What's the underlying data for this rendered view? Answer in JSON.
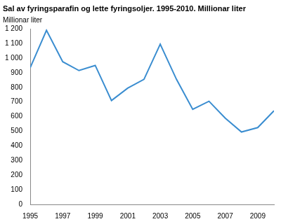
{
  "chart_data": {
    "type": "line",
    "title": "Sal av fyringsparafin og lette fyringsoljer. 1995-2010. Millionar liter",
    "y_label": "Millionar liter",
    "categories": [
      "1995",
      null,
      "1997",
      null,
      "1999",
      null,
      "2001",
      null,
      "2003",
      null,
      "2005",
      null,
      "2007",
      null,
      "2009",
      null
    ],
    "values": [
      935,
      1190,
      975,
      915,
      950,
      710,
      795,
      855,
      1095,
      855,
      650,
      705,
      590,
      495,
      525,
      640
    ],
    "color": "#3a8dd0",
    "ylim": [
      0,
      1200
    ],
    "yticks": [
      0,
      100,
      200,
      300,
      400,
      500,
      600,
      700,
      800,
      900,
      {
        "value": 1000,
        "label": "1 000"
      },
      {
        "value": 1100,
        "label": "1 100"
      },
      {
        "value": 1200,
        "label": "1 200"
      }
    ],
    "grid": false
  }
}
